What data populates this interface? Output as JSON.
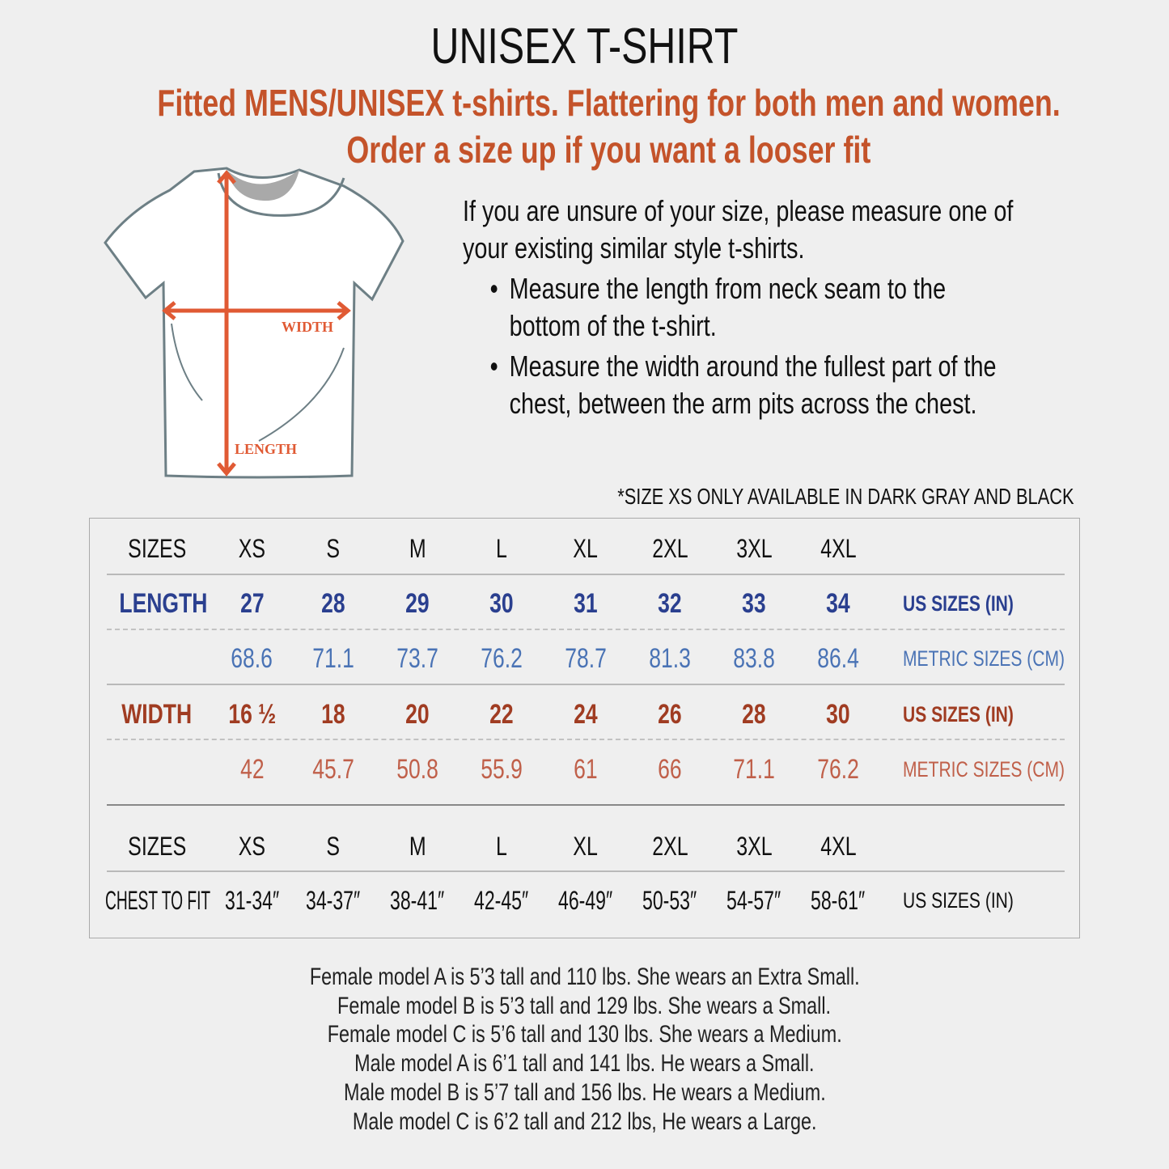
{
  "title": "UNISEX T-SHIRT",
  "subtitle_line1": "Fitted MENS/UNISEX t-shirts. Flattering for both men and women.",
  "subtitle_line2": "Order a size up if you want a looser fit",
  "diagram": {
    "width_label": "WIDTH",
    "length_label": "LENGTH"
  },
  "instructions": {
    "intro": "If you are unsure of your size, please measure one of your existing similar style t-shirts.",
    "bullets": [
      "Measure the length from neck seam to the bottom of the t-shirt.",
      "Measure the width around the fullest part of the chest, between the arm pits across the chest."
    ]
  },
  "note": "*SIZE XS ONLY AVAILABLE IN DARK GRAY AND BLACK",
  "colors": {
    "accent": "#c4532a",
    "length_us": "#2a3f8f",
    "length_metric": "#4a73b5",
    "width_us": "#a03c22",
    "width_metric": "#c0604a"
  },
  "table": {
    "sizes_label": "SIZES",
    "sizes": [
      "XS",
      "S",
      "M",
      "L",
      "XL",
      "2XL",
      "3XL",
      "4XL"
    ],
    "length": {
      "label": "LENGTH",
      "us": [
        "27",
        "28",
        "29",
        "30",
        "31",
        "32",
        "33",
        "34"
      ],
      "us_unit": "US SIZES (IN)",
      "metric": [
        "68.6",
        "71.1",
        "73.7",
        "76.2",
        "78.7",
        "81.3",
        "83.8",
        "86.4"
      ],
      "metric_unit": "METRIC SIZES (CM)"
    },
    "width": {
      "label": "WIDTH",
      "us": [
        "16 ½",
        "18",
        "20",
        "22",
        "24",
        "26",
        "28",
        "30"
      ],
      "us_unit": "US SIZES (IN)",
      "metric": [
        "42",
        "45.7",
        "50.8",
        "55.9",
        "61",
        "66",
        "71.1",
        "76.2"
      ],
      "metric_unit": "METRIC SIZES (CM)"
    },
    "chest": {
      "label": "CHEST TO FIT",
      "values": [
        "31-34″",
        "34-37″",
        "38-41″",
        "42-45″",
        "46-49″",
        "50-53″",
        "54-57″",
        "58-61″"
      ],
      "unit": "US SIZES (IN)"
    }
  },
  "models": [
    "Female model A is 5’3 tall and 110 lbs. She wears an Extra Small.",
    "Female model B is 5’3 tall and 129 lbs. She wears a Small.",
    "Female model C is 5’6 tall and 130 lbs. She wears a Medium.",
    "Male model A is 6’1 tall and 141 lbs. He wears a Small.",
    "Male model B is 5’7 tall and 156 lbs. He wears a Medium.",
    "Male model C is 6’2 tall and 212 lbs, He wears a Large."
  ]
}
